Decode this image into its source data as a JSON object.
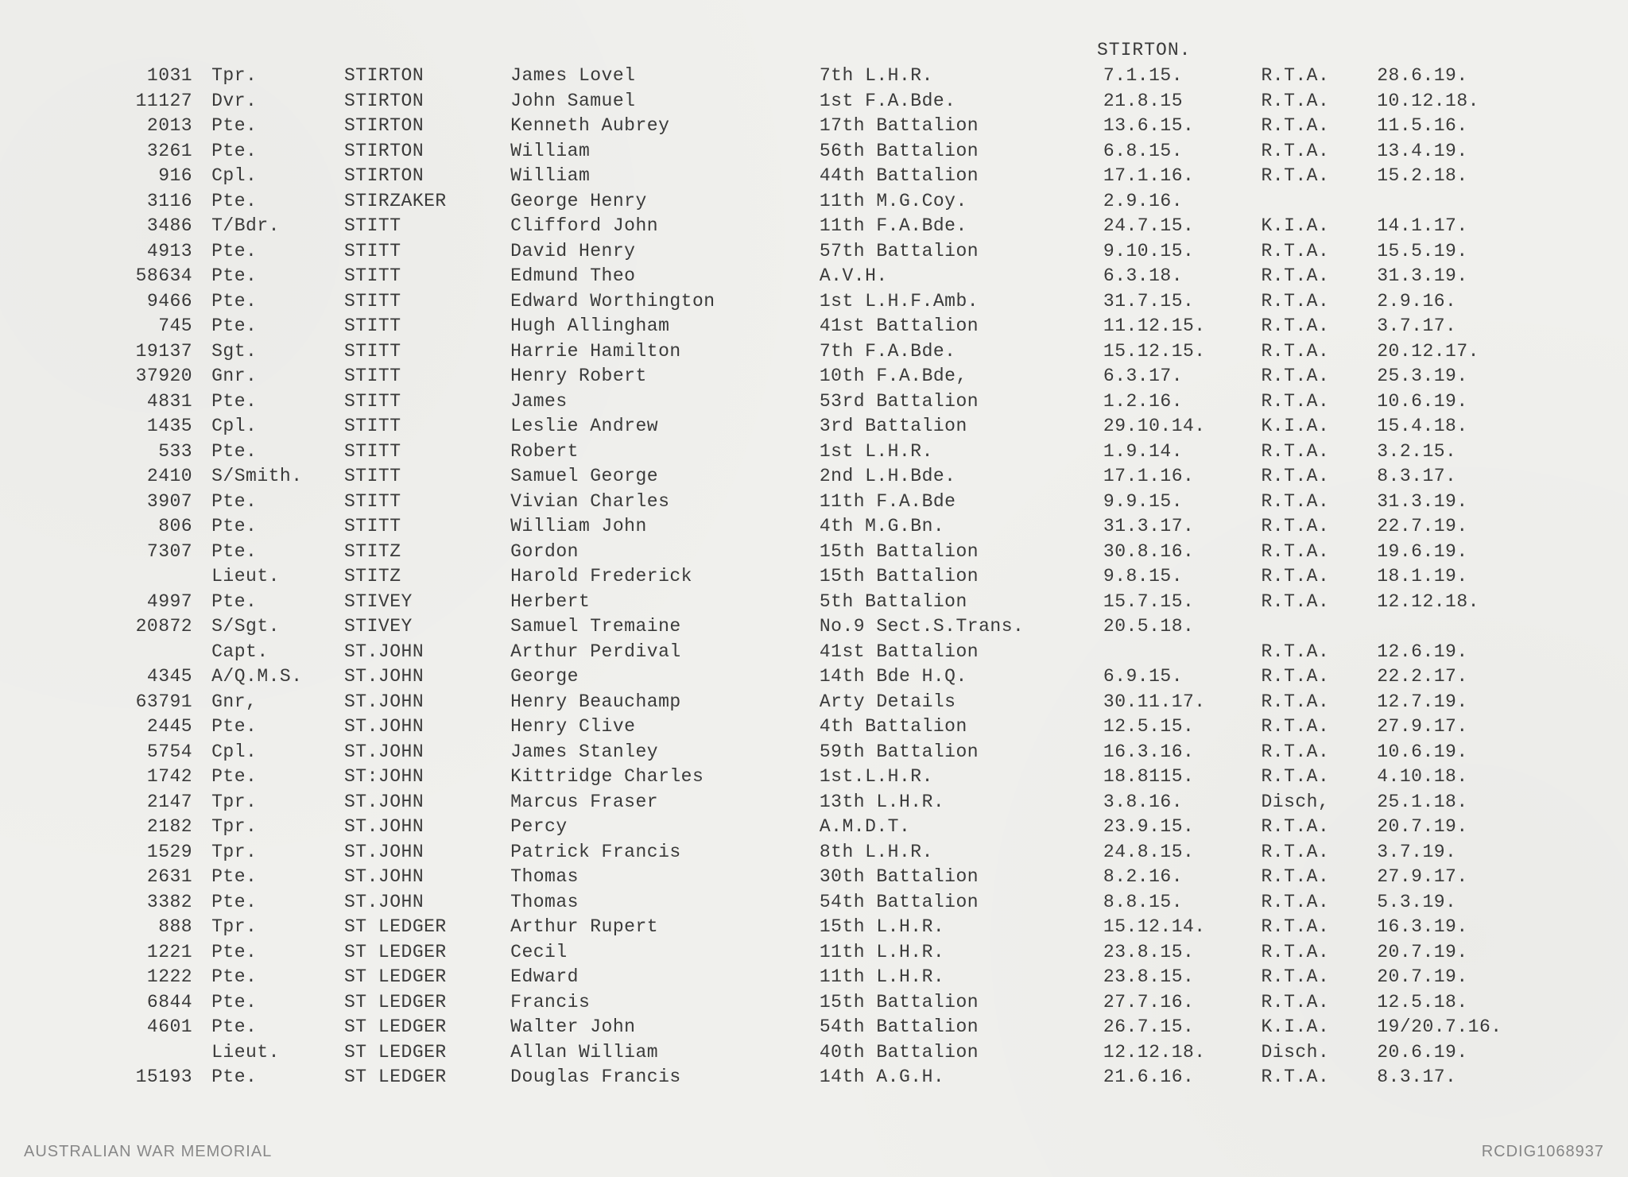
{
  "header": "STIRTON.",
  "footer_left": "AUSTRALIAN WAR MEMORIAL",
  "footer_right": "RCDIG1068937",
  "columns": [
    "num",
    "rank",
    "surname",
    "given",
    "unit",
    "date1",
    "result",
    "date2"
  ],
  "rows": [
    {
      "num": "1031",
      "rank": "Tpr.",
      "surname": "STIRTON",
      "given": "James Lovel",
      "unit": "7th L.H.R.",
      "date1": "7.1.15.",
      "result": "R.T.A.",
      "date2": "28.6.19."
    },
    {
      "num": "11127",
      "rank": "Dvr.",
      "surname": "STIRTON",
      "given": "John  Samuel",
      "unit": "1st F.A.Bde.",
      "date1": "21.8.15",
      "result": "R.T.A.",
      "date2": "10.12.18."
    },
    {
      "num": "2013",
      "rank": "Pte.",
      "surname": "STIRTON",
      "given": "Kenneth Aubrey",
      "unit": "17th Battalion",
      "date1": "13.6.15.",
      "result": "R.T.A.",
      "date2": "11.5.16."
    },
    {
      "num": "3261",
      "rank": "Pte.",
      "surname": "STIRTON",
      "given": "William",
      "unit": "56th Battalion",
      "date1": "6.8.15.",
      "result": "R.T.A.",
      "date2": "13.4.19."
    },
    {
      "num": "916",
      "rank": "Cpl.",
      "surname": "STIRTON",
      "given": "William",
      "unit": "44th Battalion",
      "date1": "17.1.16.",
      "result": "R.T.A.",
      "date2": "15.2.18."
    },
    {
      "num": "3116",
      "rank": "Pte.",
      "surname": "STIRZAKER",
      "given": "George Henry",
      "unit": "11th M.G.Coy.",
      "date1": "2.9.16.",
      "result": "",
      "date2": ""
    },
    {
      "num": "3486",
      "rank": "T/Bdr.",
      "surname": "STITT",
      "given": "Clifford John",
      "unit": "11th F.A.Bde.",
      "date1": "24.7.15.",
      "result": "K.I.A.",
      "date2": "14.1.17."
    },
    {
      "num": "4913",
      "rank": "Pte.",
      "surname": "STITT",
      "given": "David Henry",
      "unit": "57th Battalion",
      "date1": "9.10.15.",
      "result": "R.T.A.",
      "date2": "15.5.19."
    },
    {
      "num": "58634",
      "rank": "Pte.",
      "surname": "STITT",
      "given": "Edmund Theo",
      "unit": "A.V.H.",
      "date1": "6.3.18.",
      "result": "R.T.A.",
      "date2": "31.3.19."
    },
    {
      "num": "9466",
      "rank": "Pte.",
      "surname": "STITT",
      "given": "Edward Worthington",
      "unit": "1st L.H.F.Amb.",
      "date1": "31.7.15.",
      "result": "R.T.A.",
      "date2": "2.9.16."
    },
    {
      "num": "745",
      "rank": "Pte.",
      "surname": "STITT",
      "given": "Hugh Allingham",
      "unit": "41st Battalion",
      "date1": "11.12.15.",
      "result": "R.T.A.",
      "date2": "3.7.17."
    },
    {
      "num": "19137",
      "rank": "Sgt.",
      "surname": "STITT",
      "given": "Harrie Hamilton",
      "unit": "7th F.A.Bde.",
      "date1": "15.12.15.",
      "result": "R.T.A.",
      "date2": "20.12.17."
    },
    {
      "num": "37920",
      "rank": "Gnr.",
      "surname": "STITT",
      "given": "Henry Robert",
      "unit": "10th F.A.Bde,",
      "date1": "6.3.17.",
      "result": "R.T.A.",
      "date2": "25.3.19."
    },
    {
      "num": "4831",
      "rank": "Pte.",
      "surname": "STITT",
      "given": "James",
      "unit": "53rd Battalion",
      "date1": "1.2.16.",
      "result": "R.T.A.",
      "date2": "10.6.19."
    },
    {
      "num": "1435",
      "rank": "Cpl.",
      "surname": "STITT",
      "given": "Leslie Andrew",
      "unit": "3rd Battalion",
      "date1": "29.10.14.",
      "result": "K.I.A.",
      "date2": "15.4.18."
    },
    {
      "num": "533",
      "rank": "Pte.",
      "surname": "STITT",
      "given": "Robert",
      "unit": "1st L.H.R.",
      "date1": "1.9.14.",
      "result": "R.T.A.",
      "date2": "3.2.15."
    },
    {
      "num": "2410",
      "rank": "S/Smith.",
      "surname": "STITT",
      "given": "Samuel George",
      "unit": "2nd L.H.Bde.",
      "date1": "17.1.16.",
      "result": "R.T.A.",
      "date2": "8.3.17."
    },
    {
      "num": "3907",
      "rank": "Pte.",
      "surname": "STITT",
      "given": "Vivian Charles",
      "unit": "11th F.A.Bde",
      "date1": "9.9.15.",
      "result": "R.T.A.",
      "date2": "31.3.19."
    },
    {
      "num": "806",
      "rank": "Pte.",
      "surname": "STITT",
      "given": "William John",
      "unit": "4th M.G.Bn.",
      "date1": "31.3.17.",
      "result": "R.T.A.",
      "date2": "22.7.19."
    },
    {
      "num": "7307",
      "rank": "Pte.",
      "surname": "STITZ",
      "given": "Gordon",
      "unit": "15th Battalion",
      "date1": "30.8.16.",
      "result": "R.T.A.",
      "date2": "19.6.19."
    },
    {
      "num": "",
      "rank": "Lieut.",
      "surname": "STITZ",
      "given": "Harold Frederick",
      "unit": "15th Battalion",
      "date1": "9.8.15.",
      "result": "R.T.A.",
      "date2": "18.1.19."
    },
    {
      "num": "4997",
      "rank": "Pte.",
      "surname": "STIVEY",
      "given": "Herbert",
      "unit": "5th Battalion",
      "date1": "15.7.15.",
      "result": "R.T.A.",
      "date2": "12.12.18."
    },
    {
      "num": "20872",
      "rank": "S/Sgt.",
      "surname": "STIVEY",
      "given": "Samuel Tremaine",
      "unit": "No.9 Sect.S.Trans.",
      "date1": "20.5.18.",
      "result": "",
      "date2": ""
    },
    {
      "num": "",
      "rank": "Capt.",
      "surname": "ST.JOHN",
      "given": "Arthur Perdival",
      "unit": "41st Battalion",
      "date1": "",
      "result": "R.T.A.",
      "date2": "12.6.19."
    },
    {
      "num": "4345",
      "rank": "A/Q.M.S.",
      "surname": "ST.JOHN",
      "given": "George",
      "unit": "14th Bde H.Q.",
      "date1": "6.9.15.",
      "result": "R.T.A.",
      "date2": "22.2.17."
    },
    {
      "num": "63791",
      "rank": "Gnr,",
      "surname": "ST.JOHN",
      "given": "Henry Beauchamp",
      "unit": "Arty Details",
      "date1": "30.11.17.",
      "result": "R.T.A.",
      "date2": "12.7.19."
    },
    {
      "num": "2445",
      "rank": "Pte.",
      "surname": "ST.JOHN",
      "given": "Henry Clive",
      "unit": "4th Battalion",
      "date1": "12.5.15.",
      "result": "R.T.A.",
      "date2": "27.9.17."
    },
    {
      "num": "5754",
      "rank": "Cpl.",
      "surname": "ST.JOHN",
      "given": "James Stanley",
      "unit": "59th Battalion",
      "date1": "16.3.16.",
      "result": "R.T.A.",
      "date2": "10.6.19."
    },
    {
      "num": "1742",
      "rank": "Pte.",
      "surname": "ST:JOHN",
      "given": "Kittridge Charles",
      "unit": "1st.L.H.R.",
      "date1": "18.8115.",
      "result": "R.T.A.",
      "date2": "4.10.18."
    },
    {
      "num": "2147",
      "rank": "Tpr.",
      "surname": "ST.JOHN",
      "given": "Marcus Fraser",
      "unit": "13th L.H.R.",
      "date1": "3.8.16.",
      "result": "Disch,",
      "date2": "25.1.18."
    },
    {
      "num": "2182",
      "rank": "Tpr.",
      "surname": "ST.JOHN",
      "given": "Percy",
      "unit": "A.M.D.T.",
      "date1": "23.9.15.",
      "result": "R.T.A.",
      "date2": "20.7.19."
    },
    {
      "num": "1529",
      "rank": "Tpr.",
      "surname": "ST.JOHN",
      "given": "Patrick Francis",
      "unit": "8th L.H.R.",
      "date1": "24.8.15.",
      "result": "R.T.A.",
      "date2": "3.7.19."
    },
    {
      "num": "2631",
      "rank": "Pte.",
      "surname": "ST.JOHN",
      "given": "Thomas",
      "unit": "30th Battalion",
      "date1": "8.2.16.",
      "result": "R.T.A.",
      "date2": "27.9.17."
    },
    {
      "num": "3382",
      "rank": "Pte.",
      "surname": "ST.JOHN",
      "given": "Thomas",
      "unit": "54th Battalion",
      "date1": "8.8.15.",
      "result": "R.T.A.",
      "date2": "5.3.19."
    },
    {
      "num": "888",
      "rank": "Tpr.",
      "surname": "ST LEDGER",
      "given": "Arthur Rupert",
      "unit": "15th L.H.R.",
      "date1": "15.12.14.",
      "result": "R.T.A.",
      "date2": "16.3.19."
    },
    {
      "num": "1221",
      "rank": "Pte.",
      "surname": "ST LEDGER",
      "given": "Cecil",
      "unit": "11th L.H.R.",
      "date1": "23.8.15.",
      "result": "R.T.A.",
      "date2": "20.7.19."
    },
    {
      "num": "1222",
      "rank": "Pte.",
      "surname": "ST LEDGER",
      "given": "Edward",
      "unit": "11th L.H.R.",
      "date1": "23.8.15.",
      "result": "R.T.A.",
      "date2": "20.7.19."
    },
    {
      "num": "6844",
      "rank": "Pte.",
      "surname": "ST LEDGER",
      "given": "Francis",
      "unit": "15th Battalion",
      "date1": "27.7.16.",
      "result": "R.T.A.",
      "date2": "12.5.18."
    },
    {
      "num": "4601",
      "rank": "Pte.",
      "surname": "ST LEDGER",
      "given": "Walter John",
      "unit": "54th Battalion",
      "date1": "26.7.15.",
      "result": "K.I.A.",
      "date2": "19/20.7.16."
    },
    {
      "num": "",
      "rank": "Lieut.",
      "surname": "ST LEDGER",
      "given": "Allan William",
      "unit": "40th Battalion",
      "date1": "12.12.18.",
      "result": "Disch.",
      "date2": "20.6.19."
    },
    {
      "num": "15193",
      "rank": "Pte.",
      "surname": "ST LEDGER",
      "given": "Douglas Francis",
      "unit": "14th A.G.H.",
      "date1": "21.6.16.",
      "result": "R.T.A.",
      "date2": "8.3.17."
    }
  ]
}
